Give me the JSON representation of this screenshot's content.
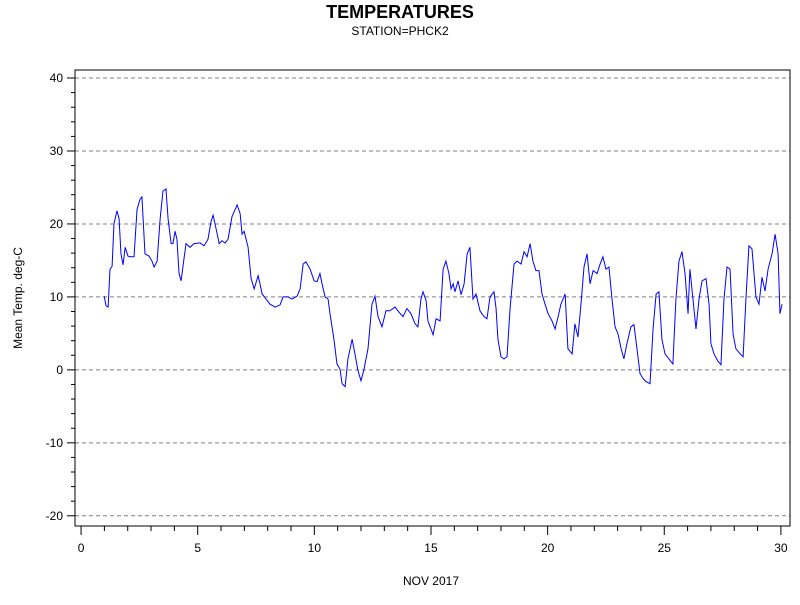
{
  "chart_data": {
    "type": "line",
    "title": "TEMPERATURES",
    "subtitle": "STATION=PHCK2",
    "xlabel": "NOV 2017",
    "ylabel": "Mean Temp. deg-C",
    "xlim": [
      -0.26,
      30.39
    ],
    "ylim": [
      -21.4,
      41.1
    ],
    "xticks": [
      0,
      5,
      10,
      15,
      20,
      25,
      30
    ],
    "yticks": [
      -20,
      -10,
      0,
      10,
      20,
      30,
      40
    ],
    "xminor_ticks": [
      1,
      2,
      3,
      4,
      6,
      7,
      8,
      9,
      11,
      12,
      13,
      14,
      16,
      17,
      18,
      19,
      21,
      22,
      23,
      24,
      26,
      27,
      28,
      29
    ],
    "yminor_ticks": [
      -18,
      -16,
      -14,
      -12,
      -8,
      -6,
      -4,
      -2,
      2,
      4,
      6,
      8,
      12,
      14,
      16,
      18,
      22,
      24,
      26,
      28,
      32,
      34,
      36,
      38
    ],
    "grid": true,
    "grid_style": "dashed",
    "x": [
      0.99,
      1.07,
      1.16,
      1.24,
      1.33,
      1.41,
      1.54,
      1.63,
      1.71,
      1.8,
      1.89,
      2.01,
      2.1,
      2.27,
      2.4,
      2.53,
      2.61,
      2.74,
      2.91,
      3.04,
      3.13,
      3.26,
      3.39,
      3.51,
      3.64,
      3.73,
      3.86,
      3.94,
      4.03,
      4.11,
      4.2,
      4.29,
      4.41,
      4.5,
      4.67,
      4.84,
      5.1,
      5.27,
      5.44,
      5.57,
      5.66,
      5.79,
      5.92,
      6.04,
      6.17,
      6.3,
      6.47,
      6.69,
      6.82,
      6.9,
      6.99,
      7.16,
      7.29,
      7.42,
      7.59,
      7.67,
      7.76,
      7.93,
      8.1,
      8.32,
      8.53,
      8.66,
      8.87,
      9.04,
      9.26,
      9.39,
      9.52,
      9.64,
      9.82,
      9.99,
      10.12,
      10.24,
      10.33,
      10.46,
      10.59,
      10.67,
      10.84,
      10.97,
      11.1,
      11.19,
      11.32,
      11.44,
      11.62,
      11.74,
      11.87,
      12.0,
      12.13,
      12.3,
      12.47,
      12.6,
      12.73,
      12.9,
      13.07,
      13.24,
      13.46,
      13.63,
      13.8,
      13.97,
      14.14,
      14.32,
      14.44,
      14.57,
      14.66,
      14.79,
      14.87,
      15.0,
      15.09,
      15.22,
      15.39,
      15.52,
      15.64,
      15.77,
      15.86,
      15.95,
      16.03,
      16.16,
      16.29,
      16.42,
      16.55,
      16.67,
      16.8,
      16.93,
      17.1,
      17.27,
      17.4,
      17.53,
      17.7,
      17.79,
      17.87,
      18.0,
      18.13,
      18.26,
      18.39,
      18.56,
      18.69,
      18.86,
      18.99,
      19.12,
      19.25,
      19.37,
      19.5,
      19.63,
      19.76,
      19.89,
      20.02,
      20.19,
      20.32,
      20.45,
      20.57,
      20.75,
      20.87,
      21.05,
      21.17,
      21.3,
      21.43,
      21.56,
      21.69,
      21.82,
      21.95,
      22.12,
      22.25,
      22.37,
      22.5,
      22.63,
      22.76,
      22.89,
      23.02,
      23.15,
      23.27,
      23.4,
      23.57,
      23.7,
      23.83,
      23.96,
      24.09,
      24.22,
      24.39,
      24.52,
      24.65,
      24.77,
      24.9,
      25.03,
      25.2,
      25.37,
      25.5,
      25.63,
      25.76,
      25.89,
      26.02,
      26.1,
      26.23,
      26.36,
      26.49,
      26.62,
      26.79,
      26.92,
      27.0,
      27.13,
      27.3,
      27.43,
      27.56,
      27.69,
      27.82,
      27.95,
      28.07,
      28.25,
      28.38,
      28.5,
      28.63,
      28.76,
      28.93,
      29.06,
      29.19,
      29.32,
      29.45,
      29.62,
      29.75,
      29.88,
      29.96,
      30.05
    ],
    "series": [
      {
        "name": "Mean Temp",
        "color": "#0000ff",
        "values": [
          10.1,
          8.8,
          8.6,
          13.8,
          14.2,
          20,
          21.8,
          20.7,
          15.9,
          14.4,
          16.8,
          15.6,
          15.5,
          15.5,
          22,
          23.4,
          23.7,
          15.9,
          15.6,
          14.9,
          14.1,
          14.9,
          20.7,
          24.5,
          24.8,
          20.7,
          17.3,
          17.3,
          19,
          17.9,
          13.2,
          12.2,
          15.2,
          17.3,
          16.8,
          17.3,
          17.4,
          17,
          17.9,
          20.3,
          21.2,
          19.3,
          17.3,
          17.7,
          17.4,
          17.9,
          21,
          22.6,
          21.4,
          18.6,
          19,
          16.8,
          12.5,
          11.1,
          12.9,
          11.8,
          10.4,
          9.7,
          9,
          8.6,
          8.9,
          10,
          10,
          9.7,
          10.1,
          11.1,
          14.5,
          14.8,
          13.8,
          12.2,
          12.1,
          13.2,
          11.8,
          10,
          9.7,
          7.7,
          4.2,
          0.8,
          0.1,
          -1.9,
          -2.3,
          1.5,
          4.2,
          2.2,
          -0.1,
          -1.5,
          0.1,
          2.9,
          9,
          10.1,
          7.3,
          5.9,
          8.1,
          8.1,
          8.6,
          7.9,
          7.3,
          8.4,
          7.7,
          6.3,
          5.9,
          9.7,
          10.7,
          9.5,
          6.7,
          5.6,
          4.8,
          7,
          6.7,
          13.8,
          14.9,
          13.2,
          11.1,
          11.8,
          10.7,
          12.2,
          10.3,
          11.8,
          15.9,
          16.8,
          9.7,
          10.4,
          8.1,
          7.3,
          7,
          10,
          10.7,
          8.4,
          4.2,
          1.8,
          1.5,
          1.8,
          8.4,
          14.5,
          14.9,
          14.5,
          16.2,
          15.5,
          17.3,
          14.9,
          13.6,
          13.6,
          10.4,
          9,
          7.7,
          6.7,
          5.6,
          7.3,
          9,
          10.4,
          2.9,
          2.2,
          6.3,
          4.5,
          9,
          14.1,
          15.9,
          11.8,
          13.6,
          13.2,
          14.5,
          15.5,
          13.8,
          14.1,
          9.7,
          5.9,
          4.9,
          2.9,
          1.5,
          3.6,
          5.9,
          6.2,
          2.9,
          -0.5,
          -1.2,
          -1.6,
          -1.9,
          5.6,
          10.4,
          10.7,
          4.2,
          2.2,
          1.5,
          0.8,
          9.7,
          14.9,
          16.2,
          13.2,
          7.7,
          13.8,
          9.7,
          5.6,
          9.7,
          12.2,
          12.5,
          9,
          3.6,
          2.2,
          1.2,
          0.7,
          9.7,
          14.1,
          13.8,
          4.9,
          2.9,
          2.2,
          1.8,
          9.7,
          17,
          16.6,
          10,
          9,
          12.7,
          10.8,
          13.8,
          15.9,
          18.6,
          15.9,
          7.7,
          9
        ]
      }
    ]
  }
}
